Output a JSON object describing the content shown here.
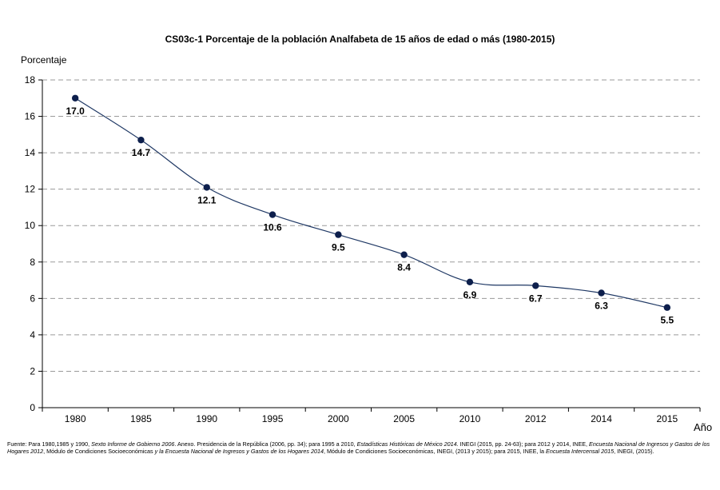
{
  "chart_data": {
    "type": "line",
    "title": "CS03c-1 Porcentaje de la población Analfabeta de 15 años de edad o más (1980-2015)",
    "ylabel": "Porcentaje",
    "xlabel": "Año",
    "categories": [
      "1980",
      "1985",
      "1990",
      "1995",
      "2000",
      "2005",
      "2010",
      "2012",
      "2014",
      "2015"
    ],
    "values": [
      17.0,
      14.7,
      12.1,
      10.6,
      9.5,
      8.4,
      6.9,
      6.7,
      6.3,
      5.5
    ],
    "data_labels": [
      "17.0",
      "14.7",
      "12.1",
      "10.6",
      "9.5",
      "8.4",
      "6.9",
      "6.7",
      "6.3",
      "5.5"
    ],
    "ylim": [
      0,
      18
    ],
    "yticks": [
      0,
      2,
      4,
      6,
      8,
      10,
      12,
      14,
      16,
      18
    ],
    "grid": "horizontal dashed",
    "line_color": "#1f3864",
    "marker_color": "#0d1f4c"
  },
  "source_note": {
    "parts": [
      {
        "t": "Fuente:   Para 1980,1985  y 1990, ",
        "i": false
      },
      {
        "t": "Sexto Informe de Gobierno 2006",
        "i": true
      },
      {
        "t": ". Anexo. Presidencia de la República (2006, pp. 34); para 1995 a 2010, ",
        "i": false
      },
      {
        "t": "Estadísticas Históricas de México 2014",
        "i": true
      },
      {
        "t": ". INEGI (2015,  pp. 24-63); para 2012 y 2014, INEE, ",
        "i": false
      },
      {
        "t": "Encuesta Nacional de Ingresos y Gastos de los Hogares 2012",
        "i": true
      },
      {
        "t": ", Módulo de Condiciones Socioeconómicas  ",
        "i": false
      },
      {
        "t": "y la Encuesta Nacional de Ingresos y Gastos de los Hogares 2014",
        "i": true
      },
      {
        "t": ", Módulo de Condiciones Socioeconómicas,  INEGI, (2013 y 2015); para 2015, INEE, la ",
        "i": false
      },
      {
        "t": "Encuesta Intercensal 2015",
        "i": true
      },
      {
        "t": ", INEGI, (2015).",
        "i": false
      }
    ]
  }
}
